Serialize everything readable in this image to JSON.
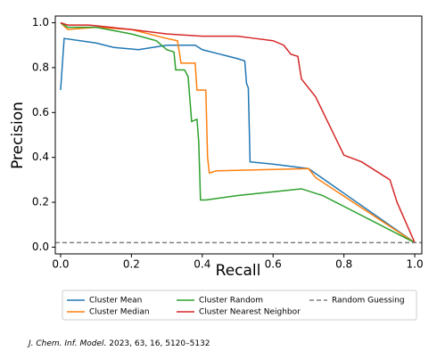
{
  "chart_data": {
    "type": "line",
    "xlabel": "Recall",
    "ylabel": "Precision",
    "xlim": [
      -0.015,
      1.02
    ],
    "ylim": [
      -0.03,
      1.03
    ],
    "xticks": [
      {
        "value": 0,
        "label": "0.0"
      },
      {
        "value": 0.2,
        "label": "0.2"
      },
      {
        "value": 0.4,
        "label": "0.4"
      },
      {
        "value": 0.6,
        "label": "0.6"
      },
      {
        "value": 0.8,
        "label": "0.8"
      },
      {
        "value": 1,
        "label": "1.0"
      }
    ],
    "yticks": [
      {
        "value": 0,
        "label": "0.0"
      },
      {
        "value": 0.2,
        "label": "0.2"
      },
      {
        "value": 0.4,
        "label": "0.4"
      },
      {
        "value": 0.6,
        "label": "0.6"
      },
      {
        "value": 0.8,
        "label": "0.8"
      },
      {
        "value": 1,
        "label": "1.0"
      }
    ],
    "grid": false,
    "legend": "below",
    "series": [
      {
        "name": "Cluster Mean",
        "color": "#1f77b4",
        "linestyle": "solid",
        "x": [
          0,
          0.01,
          0.1,
          0.15,
          0.22,
          0.3,
          0.38,
          0.4,
          0.45,
          0.5,
          0.52,
          0.525,
          0.53,
          0.535,
          0.6,
          0.7,
          1.0
        ],
        "values": [
          0.7,
          0.93,
          0.91,
          0.89,
          0.88,
          0.9,
          0.9,
          0.88,
          0.86,
          0.84,
          0.83,
          0.73,
          0.71,
          0.38,
          0.37,
          0.35,
          0.02
        ]
      },
      {
        "name": "Cluster Median",
        "color": "#ff7f0e",
        "linestyle": "solid",
        "x": [
          0,
          0.02,
          0.1,
          0.2,
          0.3,
          0.33,
          0.34,
          0.38,
          0.385,
          0.41,
          0.415,
          0.42,
          0.44,
          0.7,
          0.72,
          1.0
        ],
        "values": [
          1.0,
          0.97,
          0.98,
          0.97,
          0.93,
          0.92,
          0.82,
          0.82,
          0.7,
          0.7,
          0.4,
          0.33,
          0.34,
          0.35,
          0.31,
          0.02
        ]
      },
      {
        "name": "Cluster Random",
        "color": "#2ca02c",
        "linestyle": "solid",
        "x": [
          0,
          0.02,
          0.1,
          0.2,
          0.27,
          0.3,
          0.32,
          0.325,
          0.35,
          0.36,
          0.37,
          0.385,
          0.39,
          0.395,
          0.41,
          0.5,
          0.68,
          0.74,
          1.0
        ],
        "values": [
          1.0,
          0.98,
          0.98,
          0.95,
          0.92,
          0.88,
          0.87,
          0.79,
          0.79,
          0.76,
          0.56,
          0.57,
          0.47,
          0.21,
          0.21,
          0.23,
          0.26,
          0.23,
          0.02
        ]
      },
      {
        "name": "Cluster Nearest Neighbor",
        "color": "#d62728",
        "linestyle": "solid",
        "x": [
          0,
          0.02,
          0.08,
          0.2,
          0.3,
          0.4,
          0.5,
          0.55,
          0.6,
          0.63,
          0.65,
          0.67,
          0.68,
          0.72,
          0.8,
          0.85,
          0.9,
          0.93,
          0.95,
          1.0
        ],
        "values": [
          1.0,
          0.99,
          0.99,
          0.97,
          0.95,
          0.94,
          0.94,
          0.93,
          0.92,
          0.9,
          0.86,
          0.85,
          0.75,
          0.67,
          0.41,
          0.38,
          0.33,
          0.3,
          0.2,
          0.02
        ]
      },
      {
        "name": "Random Guessing",
        "color": "#808080",
        "linestyle": "dashed",
        "x": [
          -0.015,
          1.02
        ],
        "values": [
          0.02,
          0.02
        ]
      }
    ]
  },
  "source": {
    "journal": "J. Chem. Inf. Model.",
    "citation": "2023, 63, 16, 5120–5132"
  }
}
